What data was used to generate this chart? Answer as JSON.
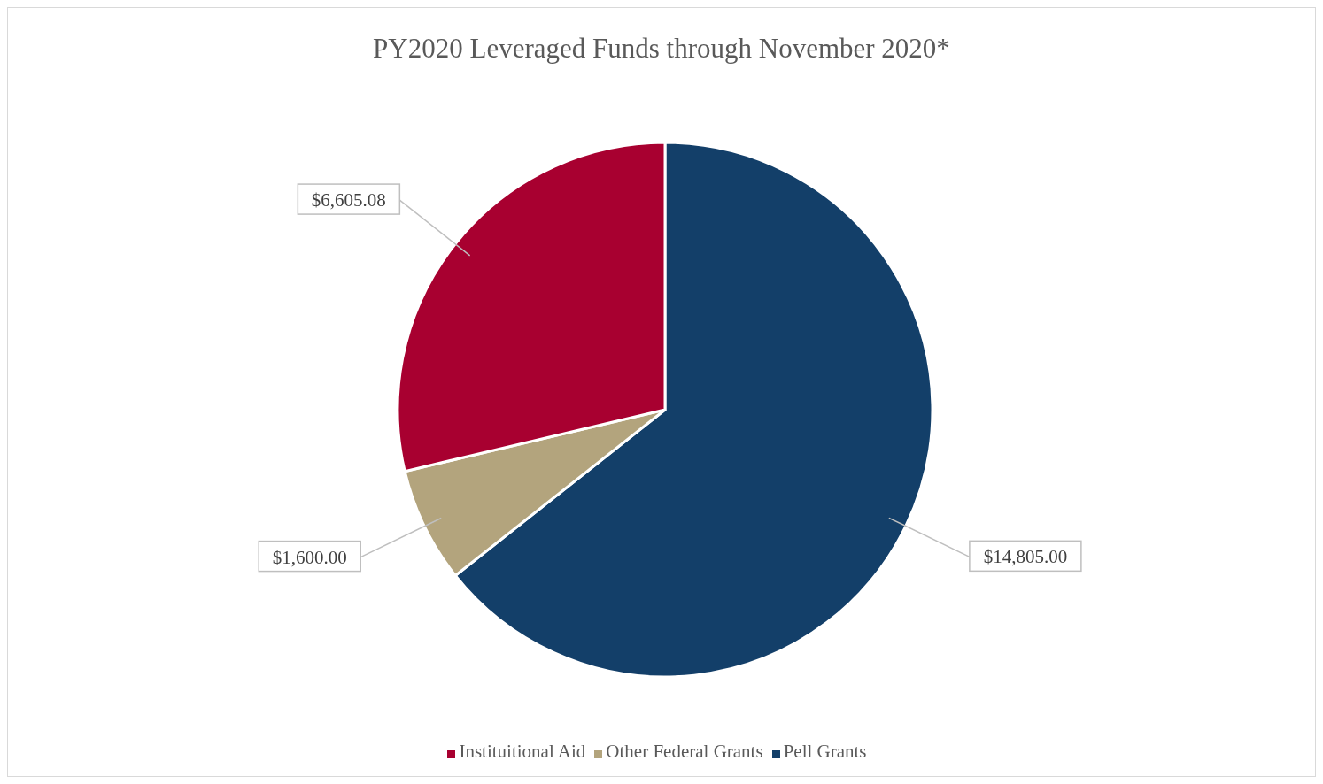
{
  "chart_data": {
    "type": "pie",
    "title": "PY2020 Leveraged Funds through November 2020*",
    "categories": [
      "Pell Grants",
      "Other Federal Grants",
      "Instituitional Aid"
    ],
    "values": [
      14805,
      1600,
      6605.08
    ],
    "value_labels": [
      "$14,805.00",
      "$1,600.00",
      "$6,605.08"
    ],
    "colors": [
      "#133f69",
      "#b3a47d",
      "#a80030"
    ],
    "legend": "bottom"
  }
}
